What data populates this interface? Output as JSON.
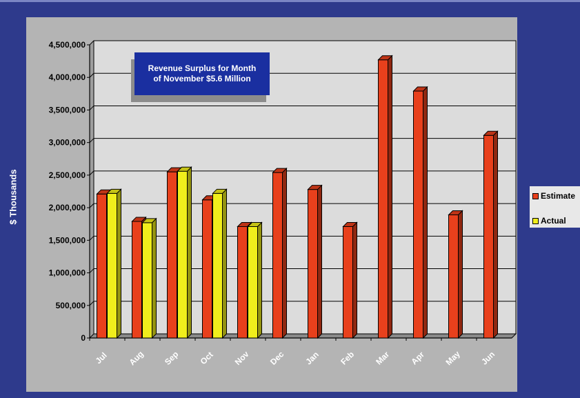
{
  "chart_data": {
    "type": "bar",
    "title": "",
    "ylabel": "$ Thousands",
    "xlabel": "",
    "ylim": [
      0,
      4500000
    ],
    "yticks": [
      "0",
      "500,000",
      "1,000,000",
      "1,500,000",
      "2,000,000",
      "2,500,000",
      "3,000,000",
      "3,500,000",
      "4,000,000",
      "4,500,000"
    ],
    "ytick_values": [
      0,
      500000,
      1000000,
      1500000,
      2000000,
      2500000,
      3000000,
      3500000,
      4000000,
      4500000
    ],
    "categories": [
      "Jul",
      "Aug",
      "Sep",
      "Oct",
      "Nov",
      "Dec",
      "Jan",
      "Feb",
      "Mar",
      "Apr",
      "May",
      "Jun"
    ],
    "series": [
      {
        "name": "Estimate",
        "color": "#e8401c",
        "values": [
          2210000,
          1790000,
          2550000,
          2120000,
          1710000,
          2540000,
          2280000,
          1710000,
          4270000,
          3790000,
          1890000,
          3110000
        ]
      },
      {
        "name": "Actual",
        "color": "#f0ee1c",
        "values": [
          2220000,
          1770000,
          2560000,
          2220000,
          1710000,
          null,
          null,
          null,
          null,
          null,
          null,
          null
        ]
      }
    ],
    "grid": true,
    "legend_position": "right",
    "annotation": {
      "line1": "Revenue Surplus for Month",
      "line2": "of November $5.6 Million"
    }
  }
}
